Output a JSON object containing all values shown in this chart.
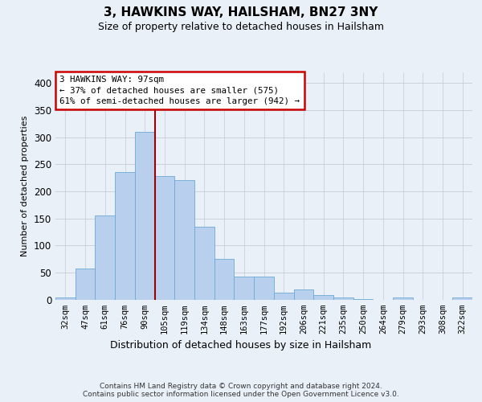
{
  "title": "3, HAWKINS WAY, HAILSHAM, BN27 3NY",
  "subtitle": "Size of property relative to detached houses in Hailsham",
  "xlabel": "Distribution of detached houses by size in Hailsham",
  "ylabel": "Number of detached properties",
  "bar_heights": [
    3,
    57,
    155,
    235,
    310,
    228,
    221,
    135,
    75,
    42,
    42,
    12,
    19,
    8,
    3,
    1,
    0,
    4,
    0,
    0,
    3
  ],
  "bar_labels": [
    "32sqm",
    "47sqm",
    "61sqm",
    "76sqm",
    "90sqm",
    "105sqm",
    "119sqm",
    "134sqm",
    "148sqm",
    "163sqm",
    "177sqm",
    "192sqm",
    "206sqm",
    "221sqm",
    "235sqm",
    "250sqm",
    "264sqm",
    "279sqm",
    "293sqm",
    "308sqm",
    "322sqm"
  ],
  "bar_color": "#b8d0ed",
  "bar_edge_color": "#6aaad4",
  "vline_xindex": 4,
  "vline_color": "#990000",
  "ylim": [
    0,
    420
  ],
  "yticks": [
    0,
    50,
    100,
    150,
    200,
    250,
    300,
    350,
    400
  ],
  "annotation_text": "3 HAWKINS WAY: 97sqm\n← 37% of detached houses are smaller (575)\n61% of semi-detached houses are larger (942) →",
  "annotation_box_facecolor": "#ffffff",
  "annotation_box_edgecolor": "#cc0000",
  "footer": "Contains HM Land Registry data © Crown copyright and database right 2024.\nContains public sector information licensed under the Open Government Licence v3.0.",
  "background_color": "#eaf0f8",
  "grid_color": "#c5ccd8"
}
